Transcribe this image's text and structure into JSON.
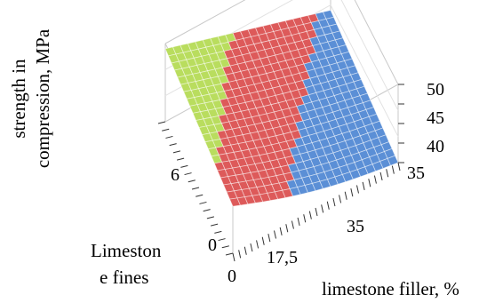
{
  "chart_data": {
    "type": "surface3d",
    "zlabel_lines": [
      "strength in",
      "compression, MPa"
    ],
    "xlabel": "limestone filler, %",
    "ylabel_lines": [
      "Limeston",
      "e fines"
    ],
    "x_ticks": [
      "0",
      "17,5",
      "35"
    ],
    "y_ticks": [
      "0",
      "6"
    ],
    "z_ticks": [
      "35",
      "40",
      "45",
      "50"
    ],
    "xlim": [
      0,
      35
    ],
    "ylim": [
      0,
      12
    ],
    "zlim": [
      35,
      50
    ],
    "legend": "none",
    "grid": true,
    "bands": [
      {
        "range": [
          35,
          40
        ],
        "color": "#5b8fd6"
      },
      {
        "range": [
          40,
          45
        ],
        "color": "#dd5a5a"
      },
      {
        "range": [
          45,
          50
        ],
        "color": "#b9dd5e"
      }
    ],
    "surface_samples": [
      {
        "x": 0,
        "y": 0,
        "z": 44
      },
      {
        "x": 35,
        "y": 0,
        "z": 35
      },
      {
        "x": 0,
        "y": 12,
        "z": 49
      },
      {
        "x": 35,
        "y": 12,
        "z": 39
      }
    ]
  }
}
